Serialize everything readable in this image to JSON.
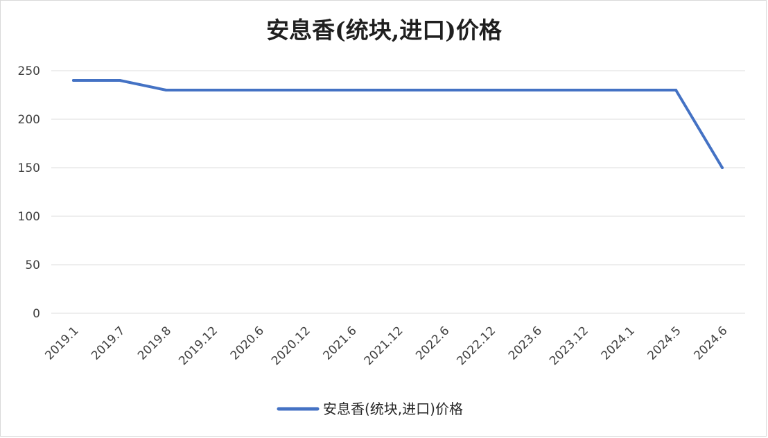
{
  "chart_data": {
    "type": "line",
    "title": "安息香(统块,进口)价格",
    "xlabel": "",
    "ylabel": "",
    "categories": [
      "2019.1",
      "2019.7",
      "2019.8",
      "2019.12",
      "2020.6",
      "2020.12",
      "2021.6",
      "2021.12",
      "2022.6",
      "2022.12",
      "2023.6",
      "2023.12",
      "2024.1",
      "2024.5",
      "2024.6"
    ],
    "series": [
      {
        "name": "安息香(统块,进口)价格",
        "color": "#4472c4",
        "values": [
          240,
          240,
          230,
          230,
          230,
          230,
          230,
          230,
          230,
          230,
          230,
          230,
          230,
          230,
          150
        ]
      }
    ],
    "ylim": [
      0,
      250
    ],
    "yticks": [
      0,
      50,
      100,
      150,
      200,
      250
    ],
    "grid": true,
    "legend_position": "bottom"
  }
}
